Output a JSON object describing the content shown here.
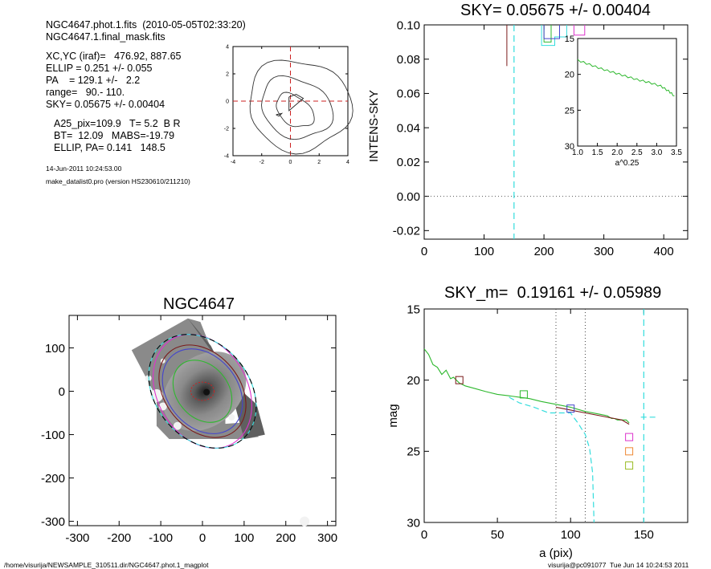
{
  "header": {
    "lines": [
      "NGC4647.phot.1.fits  (2010-05-05T02:33:20)",
      "NGC4647.1.final_mask.fits"
    ],
    "params": [
      "XC,YC (iraf)=   476.92, 887.65",
      "ELLIP = 0.251 +/- 0.055",
      "PA    = 129.1 +/-   2.2",
      "range=   90.- 110.",
      "SKY= 0.05675 +/- 0.00404"
    ],
    "results": [
      "A25_pix=109.9   T= 5.2  B R",
      "BT=  12.09   MABS=-19.79",
      "ELLIP, PA= 0.141   148.5"
    ],
    "date": "14-Jun-2011 10:24:53.00",
    "program": "make_datalist0.pro (version HS230610/211210)"
  },
  "footer": {
    "path": "/home/visurija/NEWSAMPLE_310511.dir/NGC4647.phot.1_magplot",
    "user": "visurija@pc091077  Tue Jun 14 10:24:53 2011"
  },
  "colors": {
    "green": "#2eb82e",
    "cyan": "#33dddd",
    "blue": "#4444cc",
    "magenta": "#dd33cc",
    "orange": "#ee8833",
    "olive": "#99bb22",
    "red": "#cc2222",
    "darkred": "#7a1a1a"
  },
  "chart_data": [
    {
      "id": "contour",
      "type": "contour",
      "title": "",
      "xlim": [
        -4,
        4
      ],
      "ylim": [
        -4,
        4
      ],
      "xticks": [
        "-4",
        "-2",
        "0",
        "2",
        "4"
      ],
      "yticks": [
        "-4",
        "-2",
        "0",
        "2",
        "4"
      ],
      "crosshair": [
        0,
        0
      ]
    },
    {
      "id": "intensity",
      "type": "line",
      "title": "SKY= 0.05675 +/- 0.00404",
      "xlabel": "",
      "ylabel": "INTENS-SKY",
      "xlim": [
        0,
        440
      ],
      "ylim": [
        -0.025,
        0.1
      ],
      "xticks": [
        "0",
        "100",
        "200",
        "300",
        "400"
      ],
      "yticks": [
        "-0.02",
        "0.00",
        "0.02",
        "0.04",
        "0.06",
        "0.08",
        "0.10"
      ],
      "zero_line": 0,
      "sky_radius": 150,
      "series": [
        {
          "color": "darkred",
          "points": [
            [
              138,
              0.101
            ],
            [
              138,
              0.076
            ]
          ]
        },
        {
          "color": "green",
          "points": [
            [
              200,
              0.101
            ],
            [
              200,
              0.09
            ],
            [
              212,
              0.09
            ],
            [
              212,
              0.101
            ]
          ]
        },
        {
          "color": "cyan",
          "points": [
            [
              196,
              0.101
            ],
            [
              196,
              0.088
            ],
            [
              218,
              0.088
            ],
            [
              218,
              0.093
            ],
            [
              238,
              0.093
            ],
            [
              238,
              0.101
            ]
          ]
        },
        {
          "color": "blue",
          "points": [
            [
              200,
              0.101
            ],
            [
              200,
              0.092
            ],
            [
              226,
              0.092
            ],
            [
              226,
              0.101
            ]
          ]
        },
        {
          "color": "magenta",
          "points": [
            [
              250,
              0.101
            ],
            [
              250,
              0.094
            ],
            [
              268,
              0.094
            ],
            [
              268,
              0.101
            ]
          ]
        }
      ],
      "inset": {
        "xlabel": "a^0.25",
        "xlim": [
          1.0,
          3.5
        ],
        "ylim": [
          15,
          30
        ],
        "xticks": [
          "1.0",
          "1.5",
          "2.0",
          "2.5",
          "3.0",
          "3.5"
        ],
        "yticks": [
          "15",
          "20",
          "25",
          "30"
        ],
        "x": [
          1.0,
          1.3,
          1.6,
          1.9,
          2.2,
          2.5,
          2.8,
          3.1,
          3.3,
          3.45
        ],
        "y": [
          18.0,
          18.6,
          19.2,
          19.7,
          20.2,
          20.7,
          21.1,
          21.6,
          22.3,
          23.0
        ]
      }
    },
    {
      "id": "image",
      "type": "image",
      "title": "NGC4647",
      "xlim": [
        -320,
        320
      ],
      "ylim": [
        -310,
        175
      ],
      "xticks": [
        "-300",
        "-200",
        "-100",
        "0",
        "100",
        "200",
        "300"
      ],
      "yticks": [
        "-300",
        "-200",
        "-100",
        "0",
        "100"
      ],
      "ellipses": [
        {
          "color": "green",
          "a": 82,
          "b": 62,
          "angle": 129
        },
        {
          "color": "blue",
          "a": 112,
          "b": 84,
          "angle": 129
        },
        {
          "color": "darkred",
          "a": 123,
          "b": 90,
          "angle": 129
        },
        {
          "color": "magenta",
          "a": 145,
          "b": 108,
          "angle": 120
        },
        {
          "color": "cyan",
          "a": 150,
          "b": 113,
          "angle": 129
        }
      ]
    },
    {
      "id": "profile",
      "type": "line",
      "title": "SKY_m=  0.19161 +/- 0.05989",
      "xlabel": "a (pix)",
      "ylabel": "mag",
      "xlim": [
        0,
        180
      ],
      "ylim": [
        30,
        15
      ],
      "xticks": [
        "0",
        "50",
        "100",
        "150"
      ],
      "yticks": [
        "15",
        "20",
        "25",
        "30"
      ],
      "vlines_dotted": [
        90,
        110
      ],
      "vline_dashed": 150,
      "series": [
        {
          "color": "green",
          "x": [
            0,
            3,
            6,
            9,
            12,
            15,
            18,
            20,
            24,
            28,
            35,
            42,
            50,
            58,
            65,
            72,
            80,
            90,
            100,
            110,
            120,
            125,
            128,
            130,
            132,
            135,
            138,
            140
          ],
          "y": [
            17.8,
            18.2,
            18.9,
            19.1,
            19.6,
            19.3,
            19.9,
            19.8,
            20.2,
            20.4,
            20.6,
            20.8,
            21.0,
            21.1,
            21.2,
            21.3,
            21.5,
            21.7,
            21.9,
            22.2,
            22.4,
            22.5,
            22.7,
            22.7,
            22.8,
            22.8,
            22.8,
            23.0
          ]
        },
        {
          "color": "cyan",
          "x": [
            58,
            65,
            75,
            85,
            95,
            100,
            102,
            105,
            108,
            110,
            113,
            115,
            116
          ],
          "y": [
            21.2,
            21.6,
            21.9,
            22.3,
            22.3,
            22.3,
            22.6,
            23.0,
            23.5,
            23.8,
            24.8,
            26.5,
            30.0
          ]
        },
        {
          "color": "cyan",
          "x": [
            148,
            160
          ],
          "y": [
            22.6,
            22.6
          ]
        },
        {
          "color": "darkred",
          "x": [
            90,
            100,
            110,
            120,
            130,
            135,
            140
          ],
          "y": [
            21.9,
            22.1,
            22.3,
            22.5,
            22.7,
            22.8,
            23.1
          ]
        }
      ],
      "markers": [
        {
          "color": "darkred",
          "x": 24,
          "y": 20.0
        },
        {
          "color": "green",
          "x": 68,
          "y": 21.0
        },
        {
          "color": "blue",
          "x": 100,
          "y": 22.0
        },
        {
          "color": "magenta",
          "x": 140,
          "y": 24.0
        },
        {
          "color": "orange",
          "x": 140,
          "y": 25.0
        },
        {
          "color": "olive",
          "x": 140,
          "y": 26.0
        }
      ]
    }
  ]
}
